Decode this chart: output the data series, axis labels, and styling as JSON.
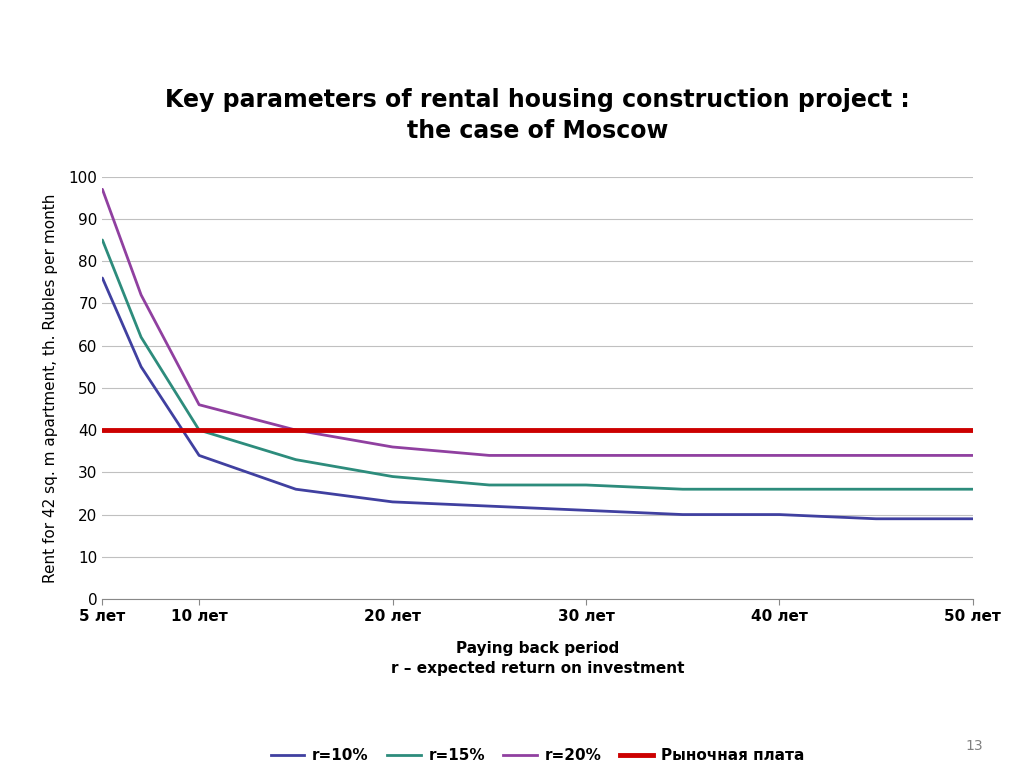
{
  "title_line1": "Key parameters of rental housing construction project :",
  "title_line2": "the case of Moscow",
  "xlabel_line1": "Paying back period",
  "xlabel_line2": "r – expected return on investment",
  "ylabel": "Rent for 42 sq. m apartment, th. Rubles per month",
  "x_ticks": [
    5,
    10,
    20,
    30,
    40,
    50
  ],
  "x_tick_labels": [
    "5 лет",
    "10 лет",
    "20 лет",
    "30 лет",
    "40 лет",
    "50 лет"
  ],
  "ylim": [
    0,
    100
  ],
  "yticks": [
    0,
    10,
    20,
    30,
    40,
    50,
    60,
    70,
    80,
    90,
    100
  ],
  "xlim": [
    5,
    50
  ],
  "series": {
    "r10": {
      "label": "r=10%",
      "color": "#4040a0",
      "linewidth": 2.0,
      "x": [
        5,
        7,
        10,
        15,
        20,
        25,
        30,
        35,
        40,
        45,
        50
      ],
      "y": [
        76,
        55,
        34,
        26,
        23,
        22,
        21,
        20,
        20,
        19,
        19
      ]
    },
    "r15": {
      "label": "r=15%",
      "color": "#2d8c7c",
      "linewidth": 2.0,
      "x": [
        5,
        7,
        10,
        15,
        20,
        25,
        30,
        35,
        40,
        45,
        50
      ],
      "y": [
        85,
        62,
        40,
        33,
        29,
        27,
        27,
        26,
        26,
        26,
        26
      ]
    },
    "r20": {
      "label": "r=20%",
      "color": "#9040a0",
      "linewidth": 2.0,
      "x": [
        5,
        7,
        10,
        15,
        20,
        25,
        30,
        35,
        40,
        45,
        50
      ],
      "y": [
        97,
        72,
        46,
        40,
        36,
        34,
        34,
        34,
        34,
        34,
        34
      ]
    },
    "market": {
      "label": "Рыночная плата",
      "color": "#cc0000",
      "linewidth": 3.5,
      "x": [
        5,
        50
      ],
      "y": [
        40,
        40
      ]
    }
  },
  "background_color": "#ffffff",
  "grid_color": "#c0c0c0",
  "title_fontsize": 17,
  "axis_label_fontsize": 11,
  "tick_fontsize": 11,
  "legend_fontsize": 11,
  "page_number": "13"
}
